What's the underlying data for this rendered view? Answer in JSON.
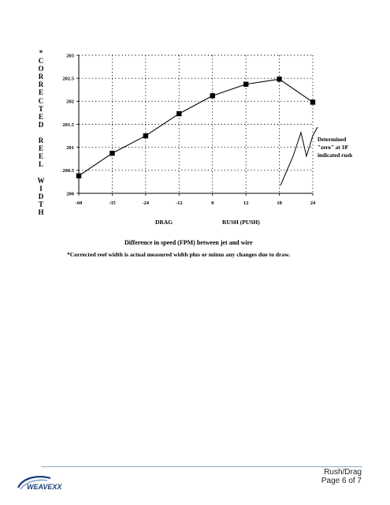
{
  "chart_data": {
    "type": "line",
    "ylabel": "*CORRECTED REEL WIDTH",
    "xlabel": "Difference in speed (FPM) between jet and wire",
    "x_tick_labels": [
      "-60",
      "-35",
      "-24",
      "-12",
      "0",
      "12",
      "18",
      "24"
    ],
    "y_ticks": [
      200,
      200.5,
      201,
      201.5,
      202,
      202.5,
      203
    ],
    "y_tick_labels": [
      "200",
      "200.5",
      "201",
      "201.5",
      "202",
      "202.5",
      "203"
    ],
    "ylim": [
      200,
      203
    ],
    "grid": true,
    "series": [
      {
        "points": [
          {
            "x": "-60",
            "y": 200.38
          },
          {
            "x": "-35",
            "y": 200.87
          },
          {
            "x": "-24",
            "y": 201.25
          },
          {
            "x": "-12",
            "y": 201.73
          },
          {
            "x": "0",
            "y": 202.12
          },
          {
            "x": "12",
            "y": 202.37
          },
          {
            "x": "18",
            "y": 202.48
          },
          {
            "x": "24",
            "y": 201.98
          }
        ]
      }
    ],
    "category_labels": {
      "left": "DRAG",
      "right": "RUSH (PUSH)"
    },
    "annotation": {
      "lines": [
        "Determined",
        "\"zero\" at 18'",
        "indicated rush"
      ]
    },
    "footnote": "*Corrected reel width is actual measured width plus or minus any changes due to draw."
  },
  "footer": {
    "line1": "Rush/Drag",
    "line2": "Page 6 of 7",
    "logo_text": "WEAVEXX",
    "brand_color": "#1b3f7a"
  }
}
